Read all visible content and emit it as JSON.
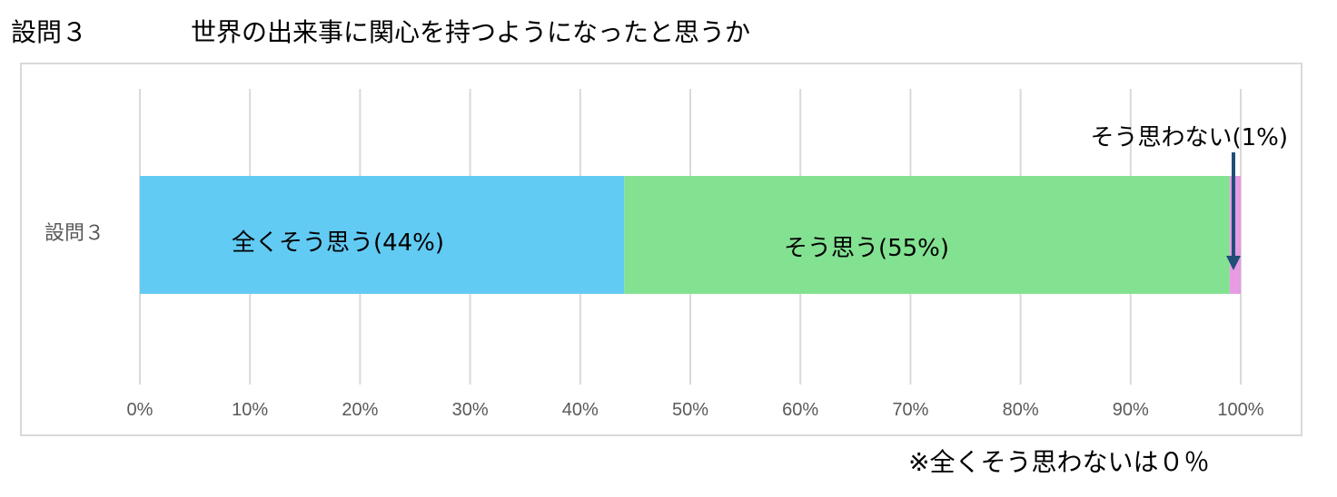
{
  "header": {
    "question_label": "設問３",
    "question_text": "世界の出来事に関心を持つようになったと思うか"
  },
  "footnote": "※全くそう思わないは０％",
  "chart_data": {
    "type": "bar",
    "orientation": "horizontal",
    "stacked": true,
    "percent": true,
    "title": "",
    "categories": [
      "設問３"
    ],
    "series": [
      {
        "name": "全くそう思う",
        "values": [
          44
        ],
        "label": "全くそう思う(44%)",
        "color": "#62cbf3"
      },
      {
        "name": "そう思う",
        "values": [
          55
        ],
        "label": "そう思う(55%)",
        "color": "#83e192"
      },
      {
        "name": "そう思わない",
        "values": [
          1
        ],
        "label": "そう思わない(1%)",
        "color": "#e69be2"
      }
    ],
    "xlim": [
      0,
      100
    ],
    "xticks": [
      "0%",
      "10%",
      "20%",
      "30%",
      "40%",
      "50%",
      "60%",
      "70%",
      "80%",
      "90%",
      "100%"
    ],
    "grid": true,
    "legend": "none",
    "annotation_arrow_color": "#1f4e79",
    "gridline_color": "#d9d9d9",
    "tick_label_color": "#595959"
  }
}
